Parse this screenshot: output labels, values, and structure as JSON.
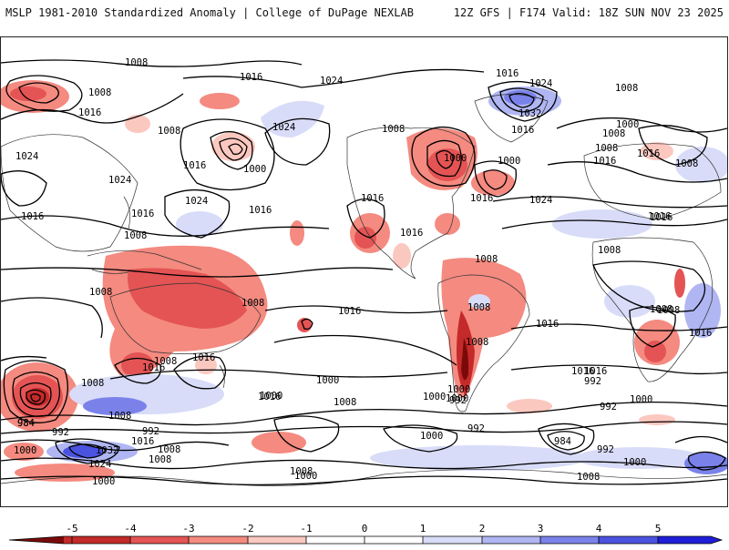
{
  "header": {
    "left": "MSLP 1981-2010 Standardized Anomaly | College of DuPage NEXLAB",
    "right": "12Z GFS | F174 Valid: 18Z SUN NOV 23 2025"
  },
  "colorbar": {
    "ticks": [
      "-5",
      "-4",
      "-3",
      "-2",
      "-1",
      "0",
      "1",
      "2",
      "3",
      "4",
      "5"
    ],
    "colors": {
      "neg5": "#7a0a0a",
      "neg4": "#c42a2a",
      "neg3": "#e45454",
      "neg2": "#f48a80",
      "neg1": "#fbc8c0",
      "zero": "#ffffff",
      "pos1": "#d8dcf8",
      "pos2": "#b0b6f2",
      "pos3": "#7a82ea",
      "pos4": "#4a52e0",
      "pos5": "#1e1ed8"
    }
  },
  "map": {
    "isobar_labels": [
      {
        "id": "l1",
        "text": "1008"
      },
      {
        "id": "l2",
        "text": "1016"
      },
      {
        "id": "l3",
        "text": "1024"
      },
      {
        "id": "l4",
        "text": "1016"
      },
      {
        "id": "l5",
        "text": "1024"
      },
      {
        "id": "l6",
        "text": "1032"
      },
      {
        "id": "l7",
        "text": "1008"
      },
      {
        "id": "l8",
        "text": "1016"
      },
      {
        "id": "l9",
        "text": "1008"
      },
      {
        "id": "l10",
        "text": "1024"
      },
      {
        "id": "l11",
        "text": "1008"
      },
      {
        "id": "l12",
        "text": "1000"
      },
      {
        "id": "l13",
        "text": "1000"
      },
      {
        "id": "l14",
        "text": "1016"
      },
      {
        "id": "l15",
        "text": "1024"
      },
      {
        "id": "l16",
        "text": "1016"
      },
      {
        "id": "l17",
        "text": "1000"
      },
      {
        "id": "l18",
        "text": "1024"
      },
      {
        "id": "l19",
        "text": "1024"
      },
      {
        "id": "l20",
        "text": "1016"
      },
      {
        "id": "l21",
        "text": "1016"
      },
      {
        "id": "l22",
        "text": "1016"
      },
      {
        "id": "l23",
        "text": "1024"
      },
      {
        "id": "l24",
        "text": "1008"
      },
      {
        "id": "l25",
        "text": "1016"
      },
      {
        "id": "l26",
        "text": "1008"
      },
      {
        "id": "l27",
        "text": "1016"
      },
      {
        "id": "l28",
        "text": "1008"
      },
      {
        "id": "l29",
        "text": "1016"
      },
      {
        "id": "l30",
        "text": "1008"
      },
      {
        "id": "l31",
        "text": "1008"
      },
      {
        "id": "l32",
        "text": "1000"
      },
      {
        "id": "l33",
        "text": "1016"
      },
      {
        "id": "l34",
        "text": "1016"
      },
      {
        "id": "l35",
        "text": "1008"
      },
      {
        "id": "l36",
        "text": "1016"
      },
      {
        "id": "l37",
        "text": "1008"
      },
      {
        "id": "l38",
        "text": "1008"
      },
      {
        "id": "l39",
        "text": "1008"
      },
      {
        "id": "l40",
        "text": "1016"
      },
      {
        "id": "l41",
        "text": "1016"
      },
      {
        "id": "l42",
        "text": "1008"
      },
      {
        "id": "l43",
        "text": "1016"
      },
      {
        "id": "l44",
        "text": "1016"
      },
      {
        "id": "l45",
        "text": "1008"
      },
      {
        "id": "l46",
        "text": "1016"
      },
      {
        "id": "l47",
        "text": "1000"
      },
      {
        "id": "l48",
        "text": "1016"
      },
      {
        "id": "l49",
        "text": "1008"
      },
      {
        "id": "l50",
        "text": "1016"
      },
      {
        "id": "l51",
        "text": "1000"
      },
      {
        "id": "l52",
        "text": "992"
      },
      {
        "id": "l53",
        "text": "1008"
      },
      {
        "id": "l54",
        "text": "1000"
      },
      {
        "id": "l55",
        "text": "992"
      },
      {
        "id": "l56",
        "text": "1000"
      },
      {
        "id": "l57",
        "text": "992"
      },
      {
        "id": "l58",
        "text": "984"
      },
      {
        "id": "l59",
        "text": "992"
      },
      {
        "id": "l60",
        "text": "1000"
      },
      {
        "id": "l61",
        "text": "1016"
      },
      {
        "id": "l62",
        "text": "992"
      },
      {
        "id": "l63",
        "text": "1008"
      },
      {
        "id": "l64",
        "text": "1000"
      },
      {
        "id": "l65",
        "text": "1024"
      },
      {
        "id": "l66",
        "text": "1032"
      },
      {
        "id": "l67",
        "text": "1008"
      },
      {
        "id": "l68",
        "text": "1000"
      },
      {
        "id": "l69",
        "text": "1016"
      },
      {
        "id": "l70",
        "text": "1008"
      },
      {
        "id": "l71",
        "text": "1000"
      },
      {
        "id": "l72",
        "text": "992"
      },
      {
        "id": "l73",
        "text": "984"
      },
      {
        "id": "l74",
        "text": "992"
      },
      {
        "id": "l75",
        "text": "1000"
      },
      {
        "id": "l76",
        "text": "1008"
      },
      {
        "id": "l77",
        "text": "1000"
      },
      {
        "id": "l78",
        "text": "1008"
      },
      {
        "id": "l79",
        "text": "1008"
      },
      {
        "id": "l80",
        "text": "1016"
      },
      {
        "id": "l81",
        "text": "1008"
      },
      {
        "id": "l82",
        "text": "1000"
      },
      {
        "id": "l83",
        "text": "1008"
      },
      {
        "id": "l84",
        "text": "984"
      }
    ]
  }
}
